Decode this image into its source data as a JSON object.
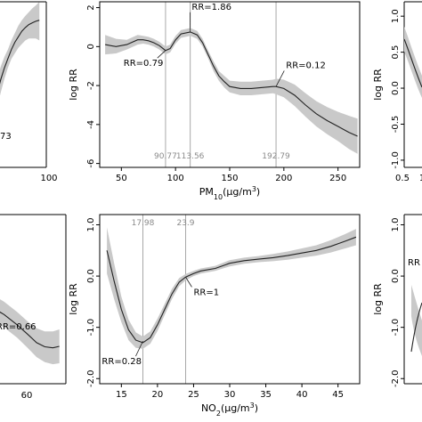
{
  "chart_data": [
    {
      "id": "pm10",
      "type": "line",
      "xlabel_main": "PM",
      "xlabel_sub": "10",
      "xlabel_unit": "(µg/m",
      "xlabel_sup": "3",
      "xlabel_close": ")",
      "ylabel": "log RR",
      "xlim": [
        30,
        270
      ],
      "ylim": [
        -6.2,
        2.3
      ],
      "xticks": [
        50,
        100,
        150,
        200,
        250
      ],
      "xtick_labels": [
        "50",
        "100",
        "150",
        "200",
        "250"
      ],
      "yticks": [
        2,
        0,
        -2,
        -4,
        -6
      ],
      "ytick_labels": [
        "2",
        "0",
        "-2",
        "-4",
        "-6"
      ],
      "vlines": [
        {
          "x": 90.77,
          "label": "90.77"
        },
        {
          "x": 113.56,
          "label": "113.56"
        },
        {
          "x": 192.79,
          "label": "192.79"
        }
      ],
      "annotations": [
        {
          "text": "RR=1.86",
          "x": 113.56,
          "y": 0.75,
          "tx": 115,
          "ty": 1.9
        },
        {
          "text": "RR=0.79",
          "x": 90.77,
          "y": -0.2,
          "tx": 52,
          "ty": -1.0
        },
        {
          "text": "RR=0.12",
          "x": 192.79,
          "y": -2.05,
          "tx": 202,
          "ty": -1.1
        }
      ],
      "series": [
        {
          "x": [
            35,
            45,
            55,
            65,
            70,
            75,
            80,
            85,
            90.77,
            95,
            100,
            105,
            113.56,
            120,
            125,
            130,
            135,
            140,
            145,
            150,
            160,
            170,
            180,
            190,
            192.79,
            200,
            210,
            220,
            230,
            240,
            250,
            260,
            268
          ],
          "y": [
            0.1,
            0.0,
            0.1,
            0.35,
            0.35,
            0.3,
            0.2,
            0.05,
            -0.2,
            -0.1,
            0.35,
            0.65,
            0.75,
            0.6,
            0.2,
            -0.4,
            -1.0,
            -1.5,
            -1.8,
            -2.05,
            -2.15,
            -2.15,
            -2.1,
            -2.05,
            -2.05,
            -2.15,
            -2.5,
            -3.0,
            -3.45,
            -3.8,
            -4.1,
            -4.4,
            -4.6
          ],
          "lower": [
            -0.4,
            -0.35,
            -0.15,
            0.1,
            0.15,
            0.1,
            0.0,
            -0.15,
            -0.4,
            -0.3,
            0.15,
            0.45,
            0.55,
            0.4,
            0.0,
            -0.6,
            -1.25,
            -1.75,
            -2.1,
            -2.35,
            -2.5,
            -2.5,
            -2.45,
            -2.4,
            -2.45,
            -2.6,
            -3.05,
            -3.6,
            -4.1,
            -4.5,
            -4.85,
            -5.25,
            -5.5
          ],
          "upper": [
            0.6,
            0.4,
            0.35,
            0.6,
            0.55,
            0.5,
            0.4,
            0.25,
            0.0,
            0.1,
            0.55,
            0.85,
            0.95,
            0.8,
            0.4,
            -0.2,
            -0.75,
            -1.25,
            -1.5,
            -1.75,
            -1.8,
            -1.8,
            -1.75,
            -1.7,
            -1.65,
            -1.7,
            -1.95,
            -2.4,
            -2.8,
            -3.1,
            -3.35,
            -3.55,
            -3.7
          ]
        }
      ]
    },
    {
      "id": "no2",
      "type": "line",
      "xlabel_main": "NO",
      "xlabel_sub": "2",
      "xlabel_unit": "(µg/m",
      "xlabel_sup": "3",
      "xlabel_close": ")",
      "ylabel": "log RR",
      "xlim": [
        12,
        48
      ],
      "ylim": [
        -2.1,
        1.2
      ],
      "xticks": [
        15,
        20,
        25,
        30,
        35,
        40,
        45
      ],
      "xtick_labels": [
        "15",
        "20",
        "25",
        "30",
        "35",
        "40",
        "45"
      ],
      "yticks": [
        1.0,
        0.0,
        -1.0,
        -2.0
      ],
      "ytick_labels": [
        "1.0",
        "0.0",
        "-1.0",
        "-2.0"
      ],
      "vlines": [
        {
          "x": 17.98,
          "label": "17.98"
        },
        {
          "x": 23.9,
          "label": "23.9"
        }
      ],
      "annotations": [
        {
          "text": "RR=0.28",
          "x": 17.98,
          "y": -1.27,
          "tx": 12.3,
          "ty": -1.72
        },
        {
          "text": "RR=1",
          "x": 23.9,
          "y": -0.02,
          "tx": 25.0,
          "ty": -0.37
        }
      ],
      "series": [
        {
          "x": [
            13,
            14,
            15,
            16,
            17,
            17.98,
            19,
            20,
            21,
            22,
            23,
            23.9,
            25,
            26,
            28,
            30,
            32,
            34,
            36,
            38,
            40,
            42,
            44,
            46,
            47.5
          ],
          "y": [
            0.5,
            -0.1,
            -0.65,
            -1.05,
            -1.25,
            -1.3,
            -1.2,
            -0.95,
            -0.65,
            -0.35,
            -0.12,
            -0.02,
            0.05,
            0.1,
            0.15,
            0.25,
            0.3,
            0.33,
            0.36,
            0.4,
            0.45,
            0.5,
            0.58,
            0.68,
            0.76
          ],
          "lower": [
            0.05,
            -0.45,
            -0.9,
            -1.25,
            -1.4,
            -1.42,
            -1.32,
            -1.07,
            -0.76,
            -0.45,
            -0.2,
            -0.08,
            0.0,
            0.05,
            0.1,
            0.19,
            0.24,
            0.27,
            0.29,
            0.32,
            0.36,
            0.4,
            0.46,
            0.54,
            0.6
          ],
          "upper": [
            0.95,
            0.25,
            -0.4,
            -0.85,
            -1.1,
            -1.18,
            -1.08,
            -0.83,
            -0.54,
            -0.25,
            -0.04,
            0.04,
            0.1,
            0.15,
            0.2,
            0.31,
            0.36,
            0.39,
            0.43,
            0.48,
            0.54,
            0.6,
            0.7,
            0.82,
            0.92
          ]
        }
      ]
    }
  ],
  "partial_panels": {
    "top_left": {
      "xlim": [
        26,
        105
      ],
      "ylim": [
        -3.0,
        1.5
      ],
      "xticks": [
        100
      ],
      "xtick_labels": [
        "100"
      ],
      "label_fragment": "73",
      "series": [
        {
          "x": [
            26,
            30,
            35,
            40,
            45,
            50,
            55,
            60,
            65,
            70,
            75,
            80,
            85,
            90,
            95
          ],
          "y": [
            -1.55,
            -1.3,
            -0.95,
            -0.6,
            -0.3,
            -0.05,
            0.2,
            0.4,
            0.55,
            0.7,
            0.8,
            0.88,
            0.93,
            0.97,
            1.0
          ],
          "lower": [
            -2.1,
            -1.8,
            -1.35,
            -0.95,
            -0.6,
            -0.3,
            -0.05,
            0.1,
            0.25,
            0.35,
            0.45,
            0.5,
            0.5,
            0.5,
            0.45
          ],
          "upper": [
            -1.0,
            -0.8,
            -0.55,
            -0.25,
            0.0,
            0.2,
            0.45,
            0.65,
            0.85,
            1.0,
            1.12,
            1.22,
            1.32,
            1.4,
            1.5
          ]
        }
      ]
    },
    "bottom_left": {
      "xlim": [
        22,
        68
      ],
      "ylim": [
        -2.1,
        1.2
      ],
      "xticks": [
        60
      ],
      "xtick_labels": [
        "60"
      ],
      "annotation": "RR=0.66",
      "series": [
        {
          "x": [
            22,
            30,
            38,
            45,
            50,
            55,
            60,
            64
          ],
          "y": [
            -0.6,
            -0.75,
            -0.95,
            -1.15,
            -1.3,
            -1.38,
            -1.4,
            -1.37
          ],
          "lower": [
            -0.85,
            -1.0,
            -1.2,
            -1.42,
            -1.58,
            -1.68,
            -1.72,
            -1.7
          ],
          "upper": [
            -0.35,
            -0.5,
            -0.7,
            -0.9,
            -1.02,
            -1.08,
            -1.08,
            -1.04
          ]
        }
      ]
    },
    "top_right": {
      "ylabel": "log RR",
      "ylim": [
        -1.1,
        1.2
      ],
      "yticks": [
        1.0,
        0.5,
        0.0,
        -0.5,
        -1.0
      ],
      "ytick_labels": [
        "1.0",
        "0.5",
        "0.0",
        "-0.5",
        "-1.0"
      ],
      "xtick_labels": [
        "0.5",
        "1"
      ]
    },
    "bottom_right": {
      "ylabel": "log RR",
      "ylim": [
        -2.1,
        1.2
      ],
      "yticks": [
        1.0,
        0.0,
        -1.0,
        -2.0
      ],
      "ytick_labels": [
        "1.0",
        "0.0",
        "-1.0",
        "-2.0"
      ],
      "annotation_fragment": "RR"
    }
  }
}
